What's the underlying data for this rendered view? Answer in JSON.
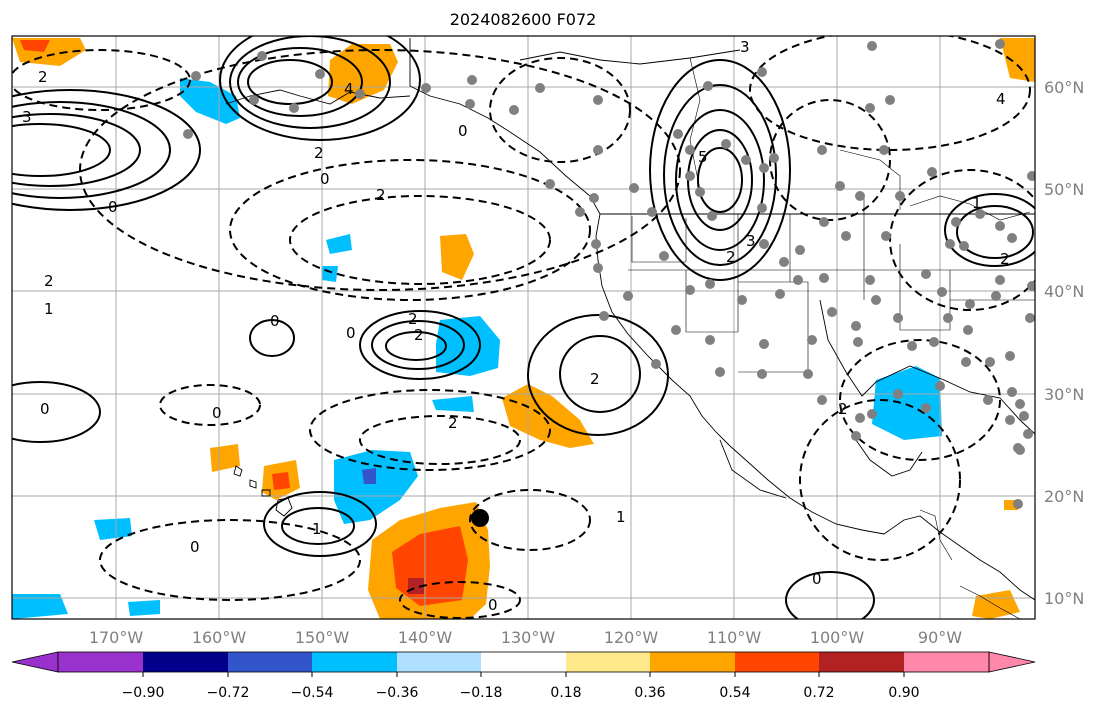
{
  "title": "2024082600 F072",
  "latitude_labels": [
    "60°N",
    "50°N",
    "40°N",
    "30°N",
    "20°N",
    "10°N"
  ],
  "longitude_labels": [
    "170°W",
    "160°W",
    "150°W",
    "140°W",
    "130°W",
    "120°W",
    "110°W",
    "100°W",
    "90°W"
  ],
  "colorbar": {
    "ticks": [
      "−0.90",
      "−0.72",
      "−0.54",
      "−0.36",
      "−0.18",
      "0.18",
      "0.36",
      "0.54",
      "0.72",
      "0.90"
    ],
    "colors": [
      "#9932cc",
      "#00008b",
      "#3355cc",
      "#00bfff",
      "#b0e0ff",
      "#ffffff",
      "#ffe98a",
      "#ffa500",
      "#ff4500",
      "#b22222",
      "#ff88aa"
    ]
  },
  "contour_labels": [
    "2",
    "3",
    "3",
    "4",
    "2",
    "0",
    "2",
    "5",
    "3",
    "2",
    "0",
    "2",
    "0",
    "2",
    "2",
    "1",
    "0",
    "2",
    "0",
    "2",
    "0",
    "1",
    "1",
    "2",
    "4",
    "1",
    "0",
    "0",
    "2",
    "0",
    "0"
  ]
}
